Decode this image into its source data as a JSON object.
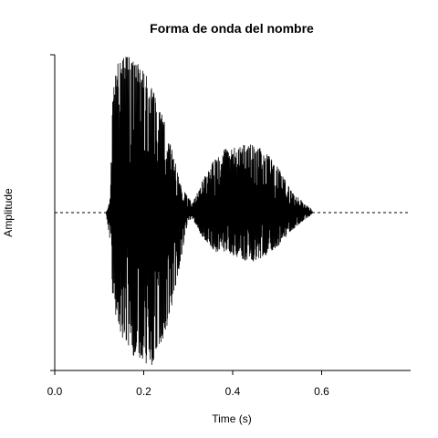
{
  "chart_data": {
    "type": "line",
    "title": "Forma de onda del nombre",
    "xlabel": "Time (s)",
    "ylabel": "Amplitude",
    "xlim": [
      0.0,
      0.8
    ],
    "ylim": [
      -1.0,
      1.0
    ],
    "x_ticks": [
      0.0,
      0.2,
      0.4,
      0.6
    ],
    "x_tick_labels": [
      "0.0",
      "0.2",
      "0.4",
      "0.6"
    ],
    "reference_line": {
      "y": 0.0,
      "style": "dashed"
    },
    "grid": false,
    "legend": "none",
    "series": [
      {
        "envelope": [
          {
            "t": 0.115,
            "max": 0.0,
            "min": 0.0
          },
          {
            "t": 0.12,
            "max": 0.03,
            "min": -0.1
          },
          {
            "t": 0.125,
            "max": 0.1,
            "min": -0.2
          },
          {
            "t": 0.13,
            "max": 0.75,
            "min": -0.55
          },
          {
            "t": 0.14,
            "max": 0.95,
            "min": -0.7
          },
          {
            "t": 0.16,
            "max": 1.0,
            "min": -0.85
          },
          {
            "t": 0.19,
            "max": 0.95,
            "min": -0.95
          },
          {
            "t": 0.22,
            "max": 0.8,
            "min": -0.97
          },
          {
            "t": 0.25,
            "max": 0.55,
            "min": -0.75
          },
          {
            "t": 0.27,
            "max": 0.35,
            "min": -0.5
          },
          {
            "t": 0.28,
            "max": 0.2,
            "min": -0.35
          },
          {
            "t": 0.29,
            "max": 0.15,
            "min": -0.2
          },
          {
            "t": 0.3,
            "max": 0.1,
            "min": -0.05
          },
          {
            "t": 0.31,
            "max": 0.06,
            "min": -0.04
          },
          {
            "t": 0.33,
            "max": 0.2,
            "min": -0.15
          },
          {
            "t": 0.36,
            "max": 0.35,
            "min": -0.25
          },
          {
            "t": 0.38,
            "max": 0.4,
            "min": -0.25
          },
          {
            "t": 0.41,
            "max": 0.42,
            "min": -0.28
          },
          {
            "t": 0.44,
            "max": 0.45,
            "min": -0.32
          },
          {
            "t": 0.47,
            "max": 0.4,
            "min": -0.28
          },
          {
            "t": 0.5,
            "max": 0.3,
            "min": -0.22
          },
          {
            "t": 0.53,
            "max": 0.15,
            "min": -0.12
          },
          {
            "t": 0.56,
            "max": 0.06,
            "min": -0.05
          },
          {
            "t": 0.575,
            "max": 0.03,
            "min": -0.02
          },
          {
            "t": 0.58,
            "max": 0.0,
            "min": 0.0
          }
        ]
      }
    ]
  }
}
